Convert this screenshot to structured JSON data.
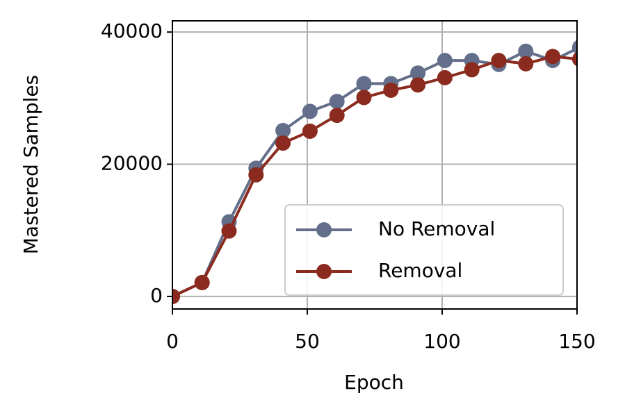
{
  "chart_data": {
    "type": "line",
    "x_label": "Epoch",
    "y_label": "Mastered Samples",
    "x": [
      0,
      11,
      21,
      31,
      41,
      51,
      61,
      71,
      81,
      91,
      101,
      111,
      121,
      131,
      141,
      151
    ],
    "series": [
      {
        "name": "No Removal",
        "color": "#636e8a",
        "values": [
          0,
          2100,
          11300,
          19400,
          25100,
          28000,
          29500,
          32200,
          32200,
          33800,
          35700,
          35700,
          35100,
          37100,
          35700,
          37700
        ]
      },
      {
        "name": "Removal",
        "color": "#8b2a1e",
        "values": [
          0,
          2100,
          9900,
          18400,
          23200,
          25000,
          27400,
          30100,
          31200,
          32000,
          33100,
          34300,
          35700,
          35200,
          36300,
          35900
        ]
      }
    ],
    "xlim": [
      0,
      150
    ],
    "xticks": [
      0,
      50,
      100,
      150
    ],
    "ylim": [
      -1900,
      41700
    ],
    "yticks": [
      0,
      20000,
      40000
    ],
    "grid": true,
    "legend": "lower right"
  }
}
